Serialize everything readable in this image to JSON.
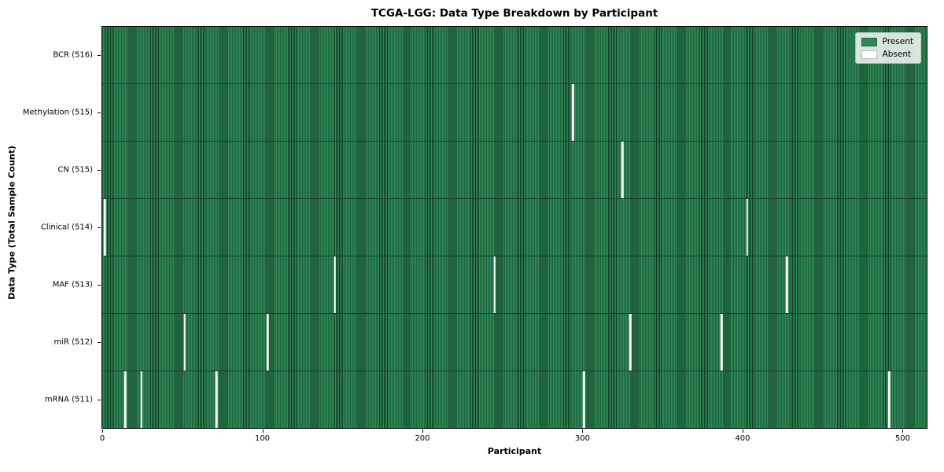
{
  "figure": {
    "title": "TCGA-LGG: Data Type Breakdown by Participant",
    "xlabel": "Participant",
    "ylabel": "Data Type (Total Sample Count)"
  },
  "legend": {
    "items": [
      {
        "label": "Present",
        "color": "#2e8b57"
      },
      {
        "label": "Absent",
        "color": "#ffffff"
      }
    ]
  },
  "chart_data": {
    "type": "heatmap",
    "title": "TCGA-LGG: Data Type Breakdown by Participant",
    "xlabel": "Participant",
    "ylabel": "Data Type (Total Sample Count)",
    "n_participants": 516,
    "x_ticks": [
      0,
      100,
      200,
      300,
      400,
      500
    ],
    "legend_position": "upper right",
    "legend_entries": [
      "Present",
      "Absent"
    ],
    "colors": {
      "present": "#2e8b57",
      "absent": "#ffffff",
      "bar_edge": "#143b26"
    },
    "rows": [
      {
        "label": "BCR (516)",
        "data_type": "BCR",
        "total_samples": 516,
        "absent_participants": []
      },
      {
        "label": "Methylation (515)",
        "data_type": "Methylation",
        "total_samples": 515,
        "absent_participants": [
          294
        ]
      },
      {
        "label": "CN (515)",
        "data_type": "CN",
        "total_samples": 515,
        "absent_participants": [
          325
        ]
      },
      {
        "label": "Clinical (514)",
        "data_type": "Clinical",
        "total_samples": 514,
        "absent_participants": [
          1,
          403
        ]
      },
      {
        "label": "MAF (513)",
        "data_type": "MAF",
        "total_samples": 513,
        "absent_participants": [
          145,
          245,
          428
        ]
      },
      {
        "label": "miR (512)",
        "data_type": "miR",
        "total_samples": 512,
        "absent_participants": [
          51,
          103,
          330,
          387
        ]
      },
      {
        "label": "mRNA (511)",
        "data_type": "mRNA",
        "total_samples": 511,
        "absent_participants": [
          14,
          24,
          71,
          301,
          492
        ]
      }
    ]
  }
}
